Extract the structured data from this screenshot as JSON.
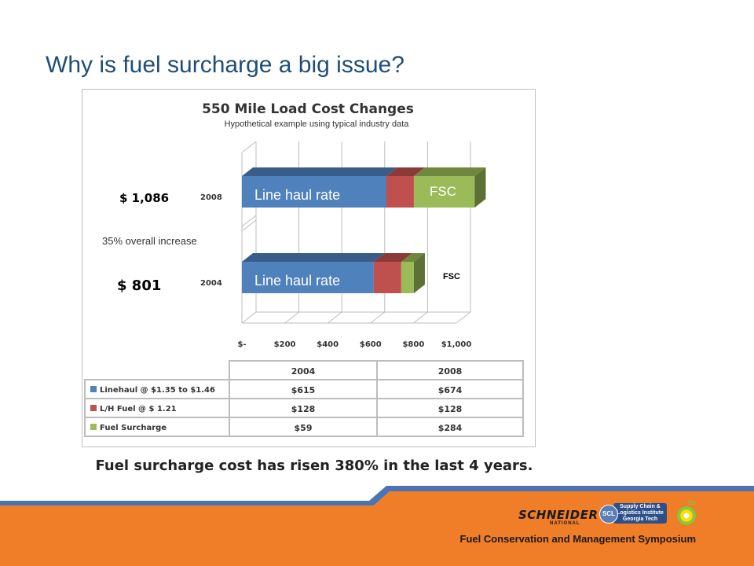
{
  "slide": {
    "title": "Why is fuel surcharge a big issue?",
    "caption": "Fuel surcharge cost has risen 380% in the last 4 years.",
    "footer_text": "Fuel Conservation  and Management  Symposium",
    "logos": {
      "schneider": "SCHNEIDER",
      "schneider_sub": "NATIONAL",
      "scl_badge": "SCL",
      "scl_text": "Supply Chain & Logistics Institute Georgia Tech",
      "bp": "bp"
    },
    "colors": {
      "title": "#1f4e79",
      "footer_orange": "#f07d28",
      "footer_blue": "#4a74b5"
    }
  },
  "chart_data": {
    "type": "bar",
    "orientation": "horizontal",
    "stacked": true,
    "title": "550 Mile Load Cost Changes",
    "subtitle": "Hypothetical example using typical industry data",
    "categories": [
      "2004",
      "2008"
    ],
    "series": [
      {
        "name": "Linehaul @ $1.35 to $1.46",
        "color": "#4f81bd",
        "values": [
          615,
          674
        ],
        "bar_label": "Line haul rate"
      },
      {
        "name": "L/H Fuel @ $ 1.21",
        "color": "#c0504d",
        "values": [
          128,
          128
        ]
      },
      {
        "name": "Fuel Surcharge",
        "color": "#9bbb59",
        "values": [
          59,
          284
        ],
        "bar_label": "FSC"
      }
    ],
    "xlim": [
      0,
      1000
    ],
    "xticks": [
      0,
      200,
      400,
      600,
      800,
      1000
    ],
    "xtick_labels": [
      "$-",
      "$200",
      "$400",
      "$600",
      "$800",
      "$1,000"
    ],
    "totals": {
      "2004": "$  801",
      "2008": "$ 1,086"
    },
    "annotations": {
      "increase": "35%  overall increase",
      "fsc_outside": "FSC"
    },
    "table": {
      "columns": [
        "2004",
        "2008"
      ],
      "rows": [
        {
          "label": "Linehaul @ $1.35 to $1.46",
          "color": "#4f81bd",
          "cells": [
            "$615",
            "$674"
          ]
        },
        {
          "label": "L/H Fuel @ $ 1.21",
          "color": "#c0504d",
          "cells": [
            "$128",
            "$128"
          ]
        },
        {
          "label": "Fuel Surcharge",
          "color": "#9bbb59",
          "cells": [
            "$59",
            "$284"
          ]
        }
      ]
    },
    "grid": true,
    "legend": "table-bottom"
  }
}
